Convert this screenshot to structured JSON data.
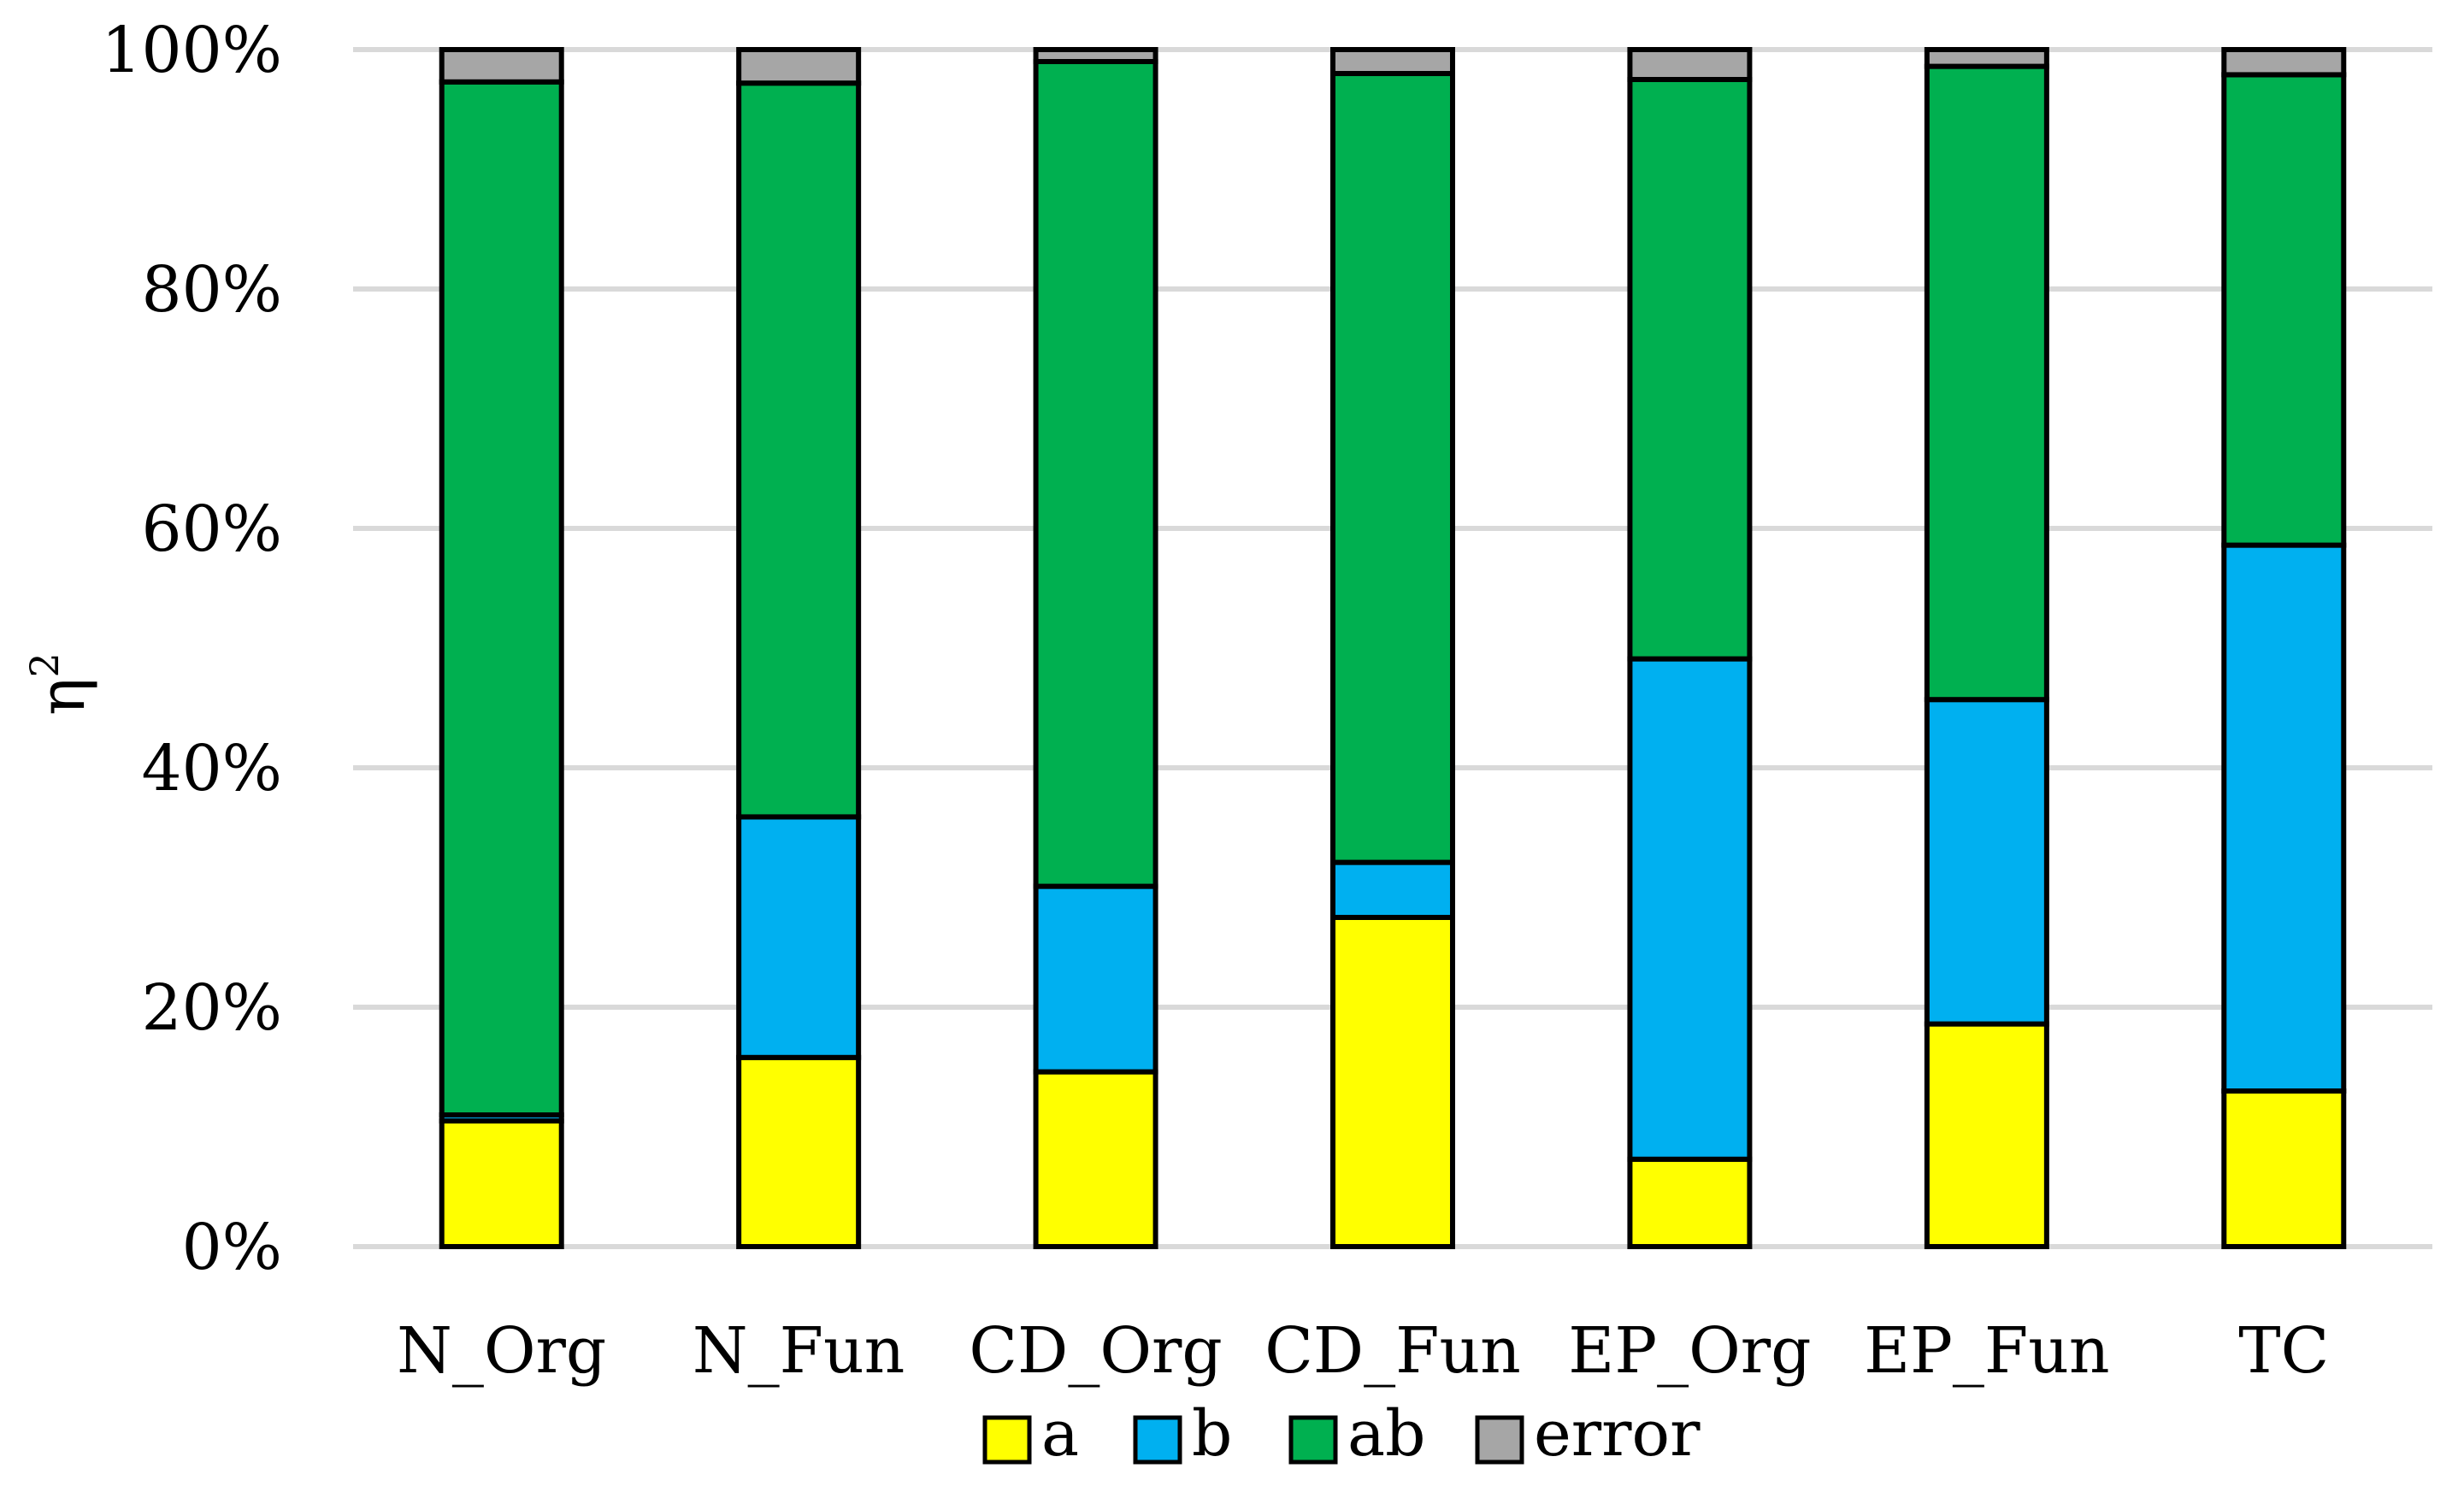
{
  "chart_data": {
    "type": "bar",
    "stacked": true,
    "title": "",
    "xlabel": "",
    "ylabel": "η",
    "ylabel_superscript": "2",
    "ylim": [
      0,
      100
    ],
    "y_unit": "%",
    "yticks": [
      0,
      20,
      40,
      60,
      80,
      100
    ],
    "ytick_labels": [
      "0%",
      "20%",
      "40%",
      "60%",
      "80%",
      "100%"
    ],
    "grid": "horizontal",
    "legend_position": "bottom",
    "categories": [
      "N_Org",
      "N_Fun",
      "CD_Org",
      "CD_Fun",
      "EP_Org",
      "EP_Fun",
      "TC"
    ],
    "series": [
      {
        "name": "a",
        "color": "#ffff00",
        "values": [
          10.5,
          15.8,
          14.6,
          27.5,
          7.3,
          18.6,
          13.0
        ]
      },
      {
        "name": "b",
        "color": "#00b0f0",
        "values": [
          0.5,
          20.1,
          15.5,
          4.6,
          41.8,
          27.1,
          45.6
        ]
      },
      {
        "name": "ab",
        "color": "#00b050",
        "values": [
          86.3,
          61.3,
          68.9,
          65.9,
          48.4,
          52.9,
          39.3
        ]
      },
      {
        "name": "error",
        "color": "#a6a6a6",
        "values": [
          2.7,
          2.8,
          1.0,
          2.0,
          2.5,
          1.4,
          2.1
        ]
      }
    ]
  }
}
